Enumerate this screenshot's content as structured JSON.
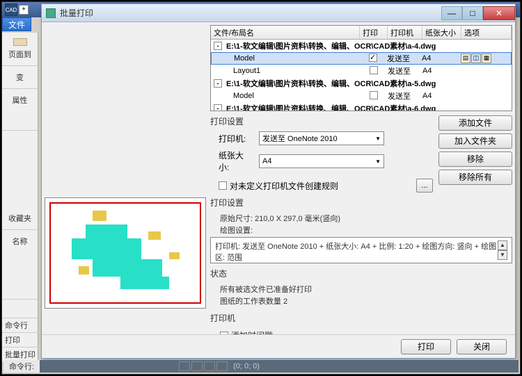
{
  "cad": {
    "logo": "CAD",
    "file_menu": "文件"
  },
  "left_panel": {
    "page_to": "页面到",
    "change": "变",
    "attr": "属性",
    "favorites": "收藏夹",
    "name": "名称",
    "cmd_line": "命令行",
    "print": "打印",
    "batch_print": "批量打印"
  },
  "dialog": {
    "title": "批量打印",
    "table": {
      "headers": {
        "name": "文件/布局名",
        "print": "打印",
        "printer": "打印机",
        "paper": "纸张大小",
        "options": "选项"
      },
      "rows": [
        {
          "type": "group",
          "name": "E:\\1-软文编辑\\图片资料\\转换、编辑、OCR\\CAD素材\\a-4.dwg"
        },
        {
          "type": "item",
          "name": "Model",
          "checked": true,
          "selected": true,
          "printer": "发送至",
          "paper": "A4",
          "has_opts": true
        },
        {
          "type": "item",
          "name": "Layout1",
          "checked": false,
          "printer": "发送至",
          "paper": "A4"
        },
        {
          "type": "group",
          "name": "E:\\1-软文编辑\\图片资料\\转换、编辑、OCR\\CAD素材\\a-5.dwg"
        },
        {
          "type": "item",
          "name": "Model",
          "checked": false,
          "printer": "发送至",
          "paper": "A4"
        },
        {
          "type": "group",
          "name": "E:\\1-软文编辑\\图片资料\\转换、编辑、OCR\\CAD素材\\a-6.dwg"
        }
      ]
    },
    "print_settings": {
      "title": "打印设置",
      "printer_label": "打印机:",
      "printer_value": "发送至 OneNote 2010",
      "paper_label": "纸张大小:",
      "paper_value": "A4",
      "undefined_rule": "对未定义打印机文件创建规则"
    },
    "buttons": {
      "add_file": "添加文件",
      "add_folder": "加入文件夹",
      "remove": "移除",
      "remove_all": "移除所有",
      "browse": "...",
      "print": "打印",
      "close": "关闭"
    },
    "info": {
      "title": "打印设置",
      "original_size": "原始尺寸: 210,0 X 297,0 毫米(竖向)",
      "draw_settings": "绘图设置:",
      "config_text": "打印机: 发送至 OneNote 2010 + 纸张大小: A4 + 比例: 1:20 + 绘图方向: 竖向 + 绘图区: 范围"
    },
    "status": {
      "title": "状态",
      "ready": "所有被选文件已准备好打印",
      "sheets": "图纸的工作表数量 2"
    },
    "printer_section": {
      "title": "打印机",
      "timestamp": "添加时间戳"
    }
  },
  "status_bar": {
    "label": "命令行:",
    "coord": "(0; 0; 0)"
  }
}
